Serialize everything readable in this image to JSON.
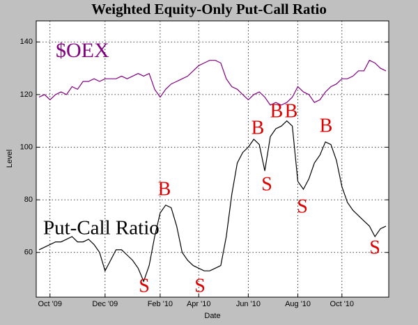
{
  "chart_data": {
    "type": "line",
    "title": "Weighted Equity-Only Put-Call Ratio",
    "x_label": "Date",
    "y_label": "Level",
    "categories": [
      null,
      null,
      "Oct '09",
      null,
      null,
      null,
      null,
      null,
      null,
      null,
      null,
      null,
      "Dec '09",
      null,
      null,
      null,
      null,
      null,
      null,
      null,
      null,
      null,
      "Feb '10",
      null,
      null,
      null,
      null,
      null,
      null,
      "Apr '10",
      null,
      null,
      null,
      null,
      null,
      null,
      null,
      null,
      "Jun '10",
      null,
      null,
      null,
      null,
      null,
      null,
      null,
      null,
      "Aug '10",
      null,
      null,
      null,
      null,
      null,
      null,
      null,
      "Oct '10",
      null,
      null,
      null,
      null,
      null,
      null,
      null,
      null
    ],
    "series": [
      {
        "name": "$OEX",
        "color": "#800080",
        "values": [
          119,
          120,
          118,
          120,
          121,
          120,
          123,
          122,
          125,
          125,
          126,
          125,
          126,
          126,
          126,
          127,
          126,
          127,
          128,
          127,
          128,
          122,
          119,
          122,
          124,
          125,
          126,
          127,
          129,
          131,
          132,
          133,
          133,
          132,
          126,
          123,
          122,
          120,
          118,
          120,
          121,
          119,
          116,
          117,
          116,
          117,
          119,
          123,
          121,
          120,
          117,
          118,
          121,
          123,
          124,
          126,
          126,
          127,
          129,
          129,
          133,
          132,
          130,
          129
        ]
      },
      {
        "name": "Put-Call Ratio",
        "color": "#000000",
        "values": [
          61,
          62,
          63,
          64,
          64,
          65,
          66,
          64,
          64,
          65,
          63,
          60,
          53,
          57,
          61,
          61,
          59,
          57,
          54,
          49,
          55,
          66,
          75,
          78,
          77,
          70,
          60,
          57,
          55,
          54,
          53,
          53,
          54,
          55,
          66,
          82,
          94,
          98,
          100,
          103,
          101,
          91,
          104,
          107,
          108,
          110,
          108,
          87,
          84,
          88,
          94,
          97,
          102,
          101,
          95,
          85,
          79,
          76,
          74,
          72,
          70,
          66,
          69,
          70
        ]
      }
    ],
    "annotations": [
      "S",
      "B",
      "S",
      "B",
      "S",
      "B",
      "B",
      "B",
      "S",
      "S"
    ],
    "annotation_color": "#dd0000",
    "ylim": [
      43,
      148
    ],
    "yticks": [
      60,
      80,
      100,
      120,
      140
    ],
    "grid": true
  }
}
